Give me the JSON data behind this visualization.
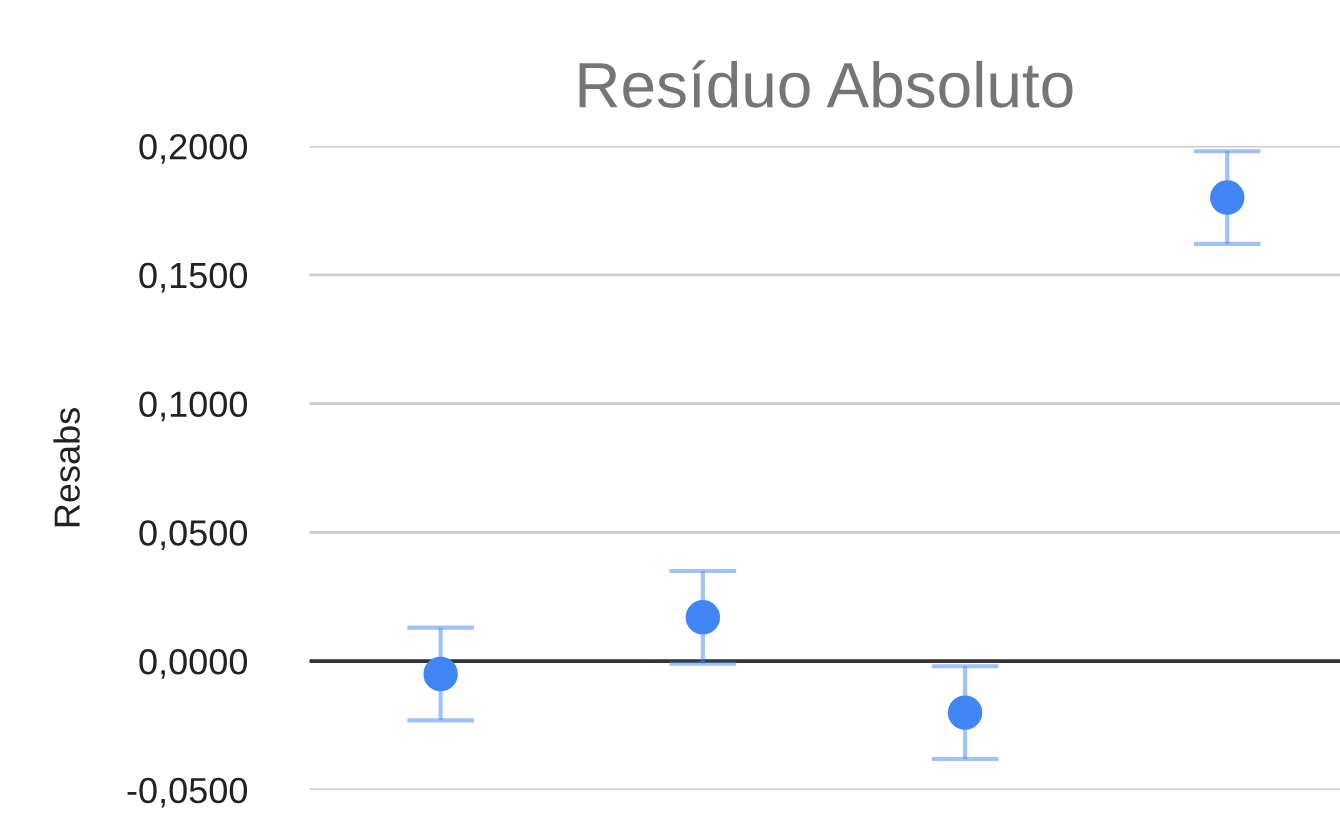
{
  "chart_data": {
    "type": "scatter",
    "title": "Resíduo Absoluto",
    "ylabel": "Resabs",
    "categories": [
      null,
      null,
      null,
      null
    ],
    "series": [
      {
        "color": "#4285f4",
        "values": [
          -0.005,
          0.017,
          -0.02,
          0.18
        ],
        "errors": [
          0.018,
          0.018,
          0.018,
          0.018
        ]
      }
    ],
    "ylim": [
      -0.05,
      0.2
    ],
    "yticks": [
      {
        "value": -0.05,
        "label": "-0,0500"
      },
      {
        "value": 0,
        "label": "0,0000"
      },
      {
        "value": 0.05,
        "label": "0,0500"
      },
      {
        "value": 0.1,
        "label": "0,1000"
      },
      {
        "value": 0.15,
        "label": "0,1500"
      },
      {
        "value": 0.2,
        "label": "0,2000"
      }
    ],
    "ref_lines": [
      {
        "axis": "y",
        "value": 0,
        "color": "#333333"
      }
    ],
    "grid": "y",
    "marker": "circle",
    "legend": false,
    "tick_labels": "y"
  }
}
